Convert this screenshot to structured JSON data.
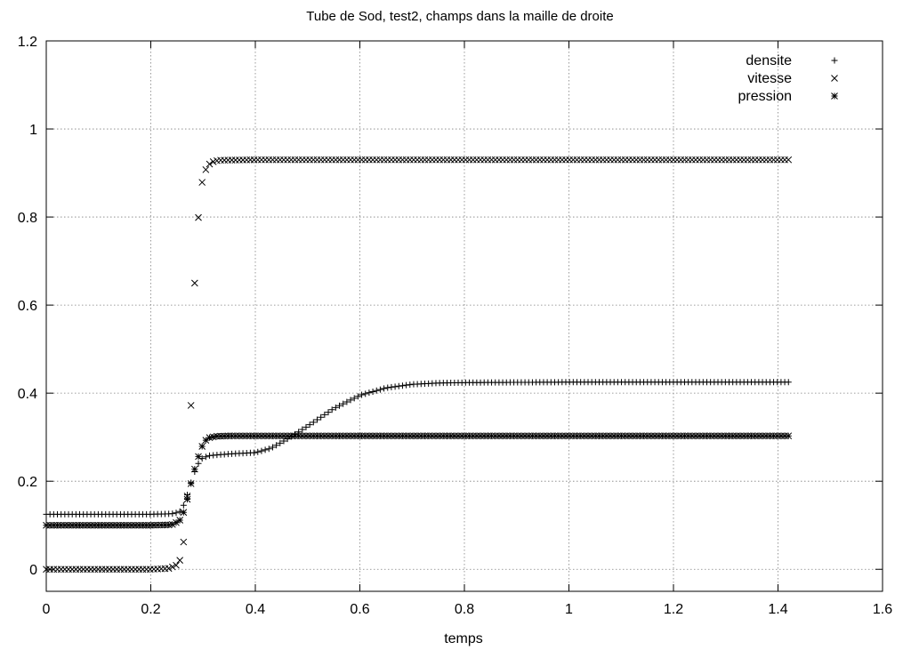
{
  "chart_data": {
    "type": "scatter",
    "title": "Tube de Sod, test2, champs dans la maille de droite",
    "xlabel": "temps",
    "ylabel": "",
    "xlim": [
      0,
      1.6
    ],
    "ylim": [
      -0.05,
      1.2
    ],
    "xticks": [
      0,
      0.2,
      0.4,
      0.6,
      0.8,
      1,
      1.2,
      1.4,
      1.6
    ],
    "xtick_labels": [
      "0",
      "0.2",
      "0.4",
      "0.6",
      "0.8",
      "1",
      "1.2",
      "1.4",
      "1.6"
    ],
    "yticks": [
      0,
      0.2,
      0.4,
      0.6,
      0.8,
      1,
      1.2
    ],
    "ytick_labels": [
      "0",
      "0.2",
      "0.4",
      "0.6",
      "0.8",
      "1",
      "1.2"
    ],
    "grid": true,
    "legend_position": "top-right",
    "x_range": [
      0,
      1.42
    ],
    "series": [
      {
        "name": "densite",
        "marker": "plus",
        "points": [
          [
            0,
            0.125
          ],
          [
            0.2,
            0.125
          ],
          [
            0.24,
            0.126
          ],
          [
            0.255,
            0.13
          ],
          [
            0.265,
            0.15
          ],
          [
            0.275,
            0.19
          ],
          [
            0.285,
            0.225
          ],
          [
            0.295,
            0.25
          ],
          [
            0.31,
            0.258
          ],
          [
            0.35,
            0.262
          ],
          [
            0.4,
            0.265
          ],
          [
            0.43,
            0.275
          ],
          [
            0.46,
            0.295
          ],
          [
            0.5,
            0.325
          ],
          [
            0.55,
            0.365
          ],
          [
            0.6,
            0.395
          ],
          [
            0.65,
            0.412
          ],
          [
            0.7,
            0.42
          ],
          [
            0.75,
            0.423
          ],
          [
            0.8,
            0.424
          ],
          [
            1.0,
            0.425
          ],
          [
            1.42,
            0.425
          ]
        ]
      },
      {
        "name": "vitesse",
        "marker": "cross",
        "points": [
          [
            0,
            0.0
          ],
          [
            0.2,
            0.0
          ],
          [
            0.235,
            0.002
          ],
          [
            0.25,
            0.01
          ],
          [
            0.258,
            0.025
          ],
          [
            0.265,
            0.08
          ],
          [
            0.27,
            0.17
          ],
          [
            0.275,
            0.3
          ],
          [
            0.28,
            0.49
          ],
          [
            0.285,
            0.69
          ],
          [
            0.292,
            0.815
          ],
          [
            0.298,
            0.878
          ],
          [
            0.305,
            0.907
          ],
          [
            0.312,
            0.92
          ],
          [
            0.32,
            0.926
          ],
          [
            0.33,
            0.929
          ],
          [
            0.4,
            0.93
          ],
          [
            1.42,
            0.93
          ]
        ]
      },
      {
        "name": "pression",
        "marker": "star",
        "points": [
          [
            0,
            0.1
          ],
          [
            0.2,
            0.1
          ],
          [
            0.24,
            0.101
          ],
          [
            0.255,
            0.11
          ],
          [
            0.265,
            0.135
          ],
          [
            0.272,
            0.17
          ],
          [
            0.28,
            0.21
          ],
          [
            0.288,
            0.245
          ],
          [
            0.295,
            0.27
          ],
          [
            0.302,
            0.29
          ],
          [
            0.312,
            0.299
          ],
          [
            0.325,
            0.302
          ],
          [
            0.35,
            0.303
          ],
          [
            1.42,
            0.303
          ]
        ]
      }
    ]
  }
}
